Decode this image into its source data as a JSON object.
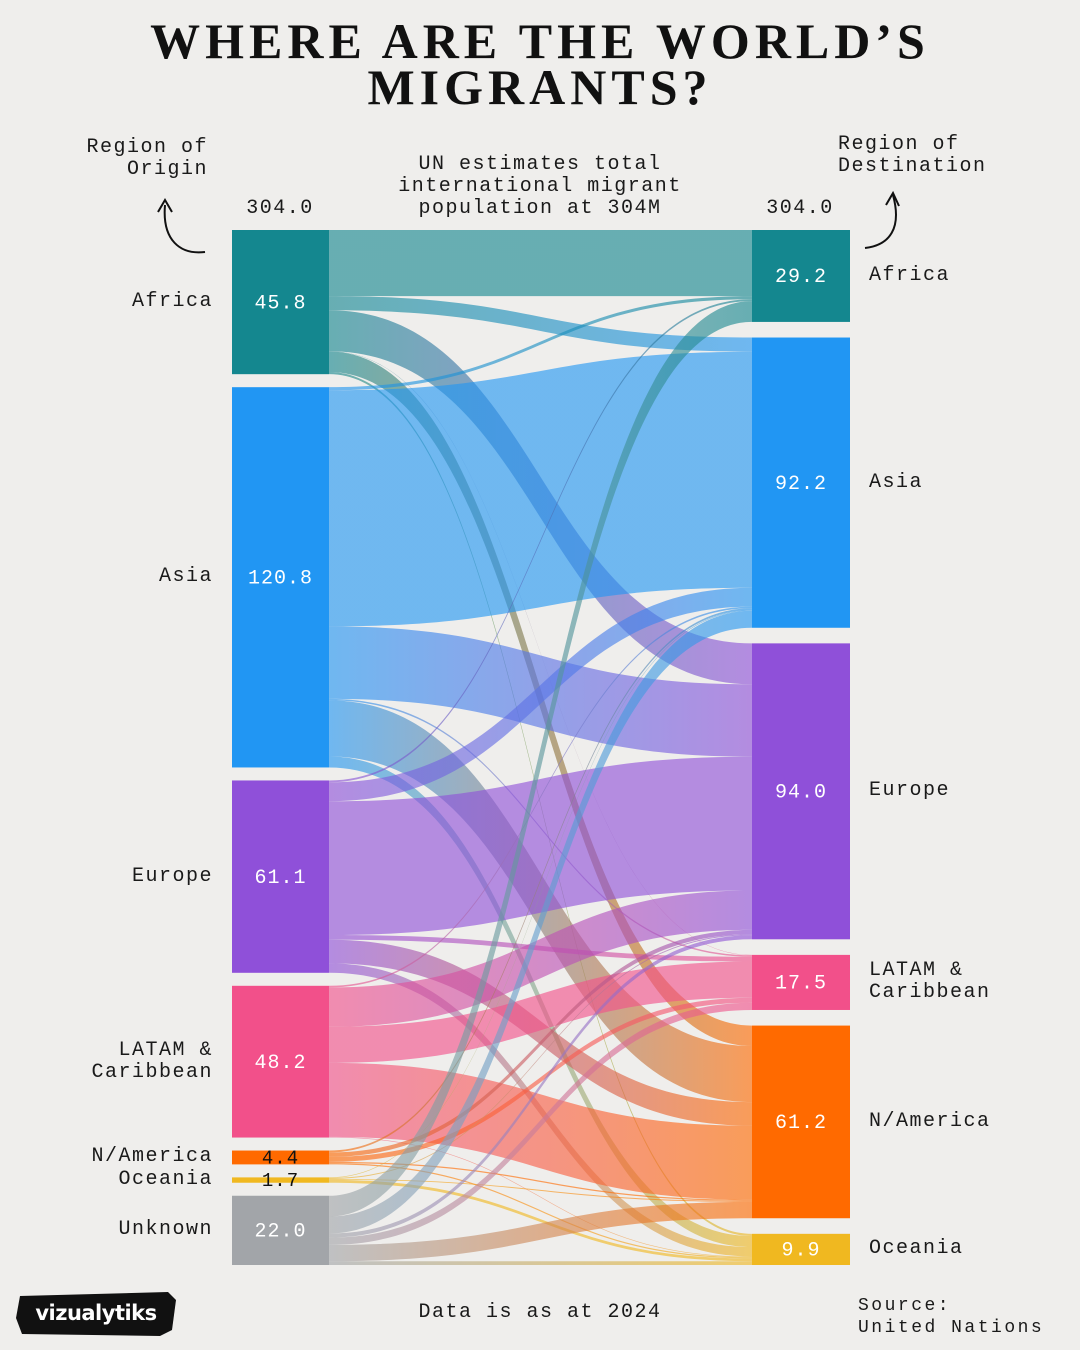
{
  "chart_data": {
    "type": "sankey",
    "title": "WHERE ARE THE WORLD’S MIGRANTS?",
    "source_heading": "Region of Origin",
    "target_heading": "Region of Destination",
    "annotation": "UN estimates total international migrant population at 304M",
    "source_total": {
      "value": 304,
      "label": "304.0"
    },
    "target_total": {
      "value": 304,
      "label": "304.0"
    },
    "sources": [
      {
        "name": "Africa",
        "value": 45.8,
        "color": "#14878f"
      },
      {
        "name": "Asia",
        "value": 120.8,
        "color": "#2196f3"
      },
      {
        "name": "Europe",
        "value": 61.1,
        "color": "#8f50d9"
      },
      {
        "name": "LATAM & Caribbean",
        "value": 48.2,
        "color": "#f2508a"
      },
      {
        "name": "N/America",
        "value": 4.4,
        "color": "#ff6a00"
      },
      {
        "name": "Oceania",
        "value": 1.7,
        "color": "#f0b820"
      },
      {
        "name": "Unknown",
        "value": 22,
        "value_label": "22.0",
        "color": "#a2a5a9"
      }
    ],
    "targets": [
      {
        "name": "Africa",
        "value": 29.2,
        "color": "#14878f"
      },
      {
        "name": "Asia",
        "value": 92.2,
        "color": "#2196f3"
      },
      {
        "name": "Europe",
        "value": 94,
        "value_label": "94.0",
        "color": "#8f50d9"
      },
      {
        "name": "LATAM & Caribbean",
        "value": 17.5,
        "color": "#f2508a"
      },
      {
        "name": "N/America",
        "value": 61.2,
        "color": "#ff6a00"
      },
      {
        "name": "Oceania",
        "value": 9.9,
        "color": "#f0b820"
      }
    ],
    "links": [
      {
        "source": 0,
        "target": 0,
        "value": 21.0
      },
      {
        "source": 0,
        "target": 1,
        "value": 4.5
      },
      {
        "source": 0,
        "target": 2,
        "value": 13.0
      },
      {
        "source": 0,
        "target": 3,
        "value": 0.1
      },
      {
        "source": 0,
        "target": 4,
        "value": 6.5
      },
      {
        "source": 0,
        "target": 5,
        "value": 0.7
      },
      {
        "source": 1,
        "target": 0,
        "value": 1.0
      },
      {
        "source": 1,
        "target": 1,
        "value": 75.0
      },
      {
        "source": 1,
        "target": 2,
        "value": 23.0
      },
      {
        "source": 1,
        "target": 3,
        "value": 0.5
      },
      {
        "source": 1,
        "target": 4,
        "value": 17.8
      },
      {
        "source": 1,
        "target": 5,
        "value": 3.5
      },
      {
        "source": 2,
        "target": 0,
        "value": 0.6
      },
      {
        "source": 2,
        "target": 1,
        "value": 6.0
      },
      {
        "source": 2,
        "target": 2,
        "value": 42.5
      },
      {
        "source": 2,
        "target": 3,
        "value": 1.5
      },
      {
        "source": 2,
        "target": 4,
        "value": 7.5
      },
      {
        "source": 2,
        "target": 5,
        "value": 3.0
      },
      {
        "source": 3,
        "target": 1,
        "value": 0.5
      },
      {
        "source": 3,
        "target": 2,
        "value": 12.5
      },
      {
        "source": 3,
        "target": 3,
        "value": 11.5
      },
      {
        "source": 3,
        "target": 4,
        "value": 23.5
      },
      {
        "source": 3,
        "target": 5,
        "value": 0.2
      },
      {
        "source": 4,
        "target": 1,
        "value": 0.6
      },
      {
        "source": 4,
        "target": 2,
        "value": 1.4
      },
      {
        "source": 4,
        "target": 3,
        "value": 1.6
      },
      {
        "source": 4,
        "target": 4,
        "value": 0.4
      },
      {
        "source": 4,
        "target": 5,
        "value": 0.4
      },
      {
        "source": 5,
        "target": 1,
        "value": 0.2
      },
      {
        "source": 5,
        "target": 2,
        "value": 0.3
      },
      {
        "source": 5,
        "target": 4,
        "value": 0.3
      },
      {
        "source": 5,
        "target": 5,
        "value": 0.9
      },
      {
        "source": 6,
        "target": 0,
        "value": 6.6
      },
      {
        "source": 6,
        "target": 1,
        "value": 5.4
      },
      {
        "source": 6,
        "target": 2,
        "value": 1.3
      },
      {
        "source": 6,
        "target": 3,
        "value": 2.3
      },
      {
        "source": 6,
        "target": 4,
        "value": 5.2
      },
      {
        "source": 6,
        "target": 5,
        "value": 1.2
      }
    ],
    "footnote": "Data is as at 2024",
    "credit_lines": [
      "Source:",
      "United Nations"
    ],
    "logo": "vizualytiks"
  }
}
